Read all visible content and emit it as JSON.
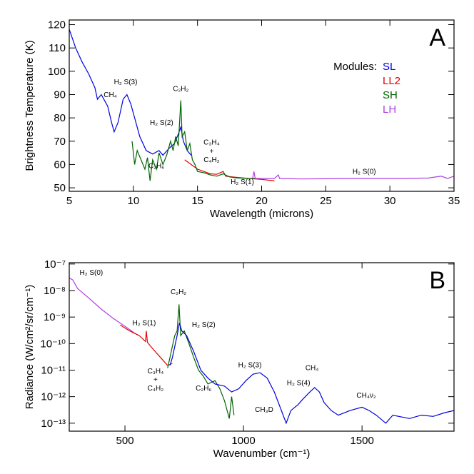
{
  "chart_data": [
    {
      "type": "line",
      "label": "A",
      "x_label": "Wavelength (microns)",
      "y_label": "Brightness Temperature (K)",
      "xlim": [
        5,
        35
      ],
      "ylim": [
        48.5,
        122
      ],
      "xticks": [
        5,
        10,
        15,
        20,
        25,
        30,
        35
      ],
      "yticks": [
        50,
        60,
        70,
        80,
        90,
        100,
        110,
        120
      ],
      "log_y": false,
      "legend_title": "Modules:",
      "series": [
        {
          "name": "SL",
          "color": "#0000e0",
          "x": [
            5,
            5.5,
            6,
            6.5,
            7,
            7.2,
            7.5,
            7.8,
            8,
            8.3,
            8.5,
            8.8,
            9.2,
            9.5,
            9.8,
            10.1,
            10.5,
            11,
            11.5,
            12,
            12.3,
            12.8,
            13.2,
            13.5,
            13.7,
            13.9,
            14.2,
            14.5
          ],
          "values": [
            118,
            110,
            104,
            99,
            93,
            88,
            90,
            87,
            85,
            78,
            74,
            78,
            88,
            90,
            86,
            80,
            72,
            66,
            64.5,
            66,
            64,
            67,
            69,
            73,
            76,
            70,
            66,
            64
          ]
        },
        {
          "name": "LL2",
          "color": "#e00000",
          "x": [
            14,
            14.5,
            15,
            15.5,
            16,
            16.5,
            17,
            17.2,
            18,
            19,
            20,
            21
          ],
          "values": [
            62,
            60,
            58,
            57,
            56,
            55.8,
            57,
            55,
            54.5,
            54,
            53.6,
            53
          ]
        },
        {
          "name": "SH",
          "color": "#006400",
          "x": [
            9.9,
            10.1,
            10.3,
            10.6,
            10.9,
            11.1,
            11.3,
            11.5,
            11.8,
            12,
            12.3,
            12.6,
            12.9,
            13.1,
            13.3,
            13.5,
            13.7,
            13.8,
            14,
            14.2,
            14.4,
            14.6,
            14.8,
            15,
            15.5,
            16,
            16.5,
            17,
            17.5,
            18,
            19,
            19.5
          ],
          "values": [
            70,
            60,
            66,
            62,
            58,
            63,
            53,
            62,
            58,
            65,
            60,
            64,
            70,
            66,
            72,
            68,
            87.5,
            72,
            74,
            66,
            69,
            62,
            60,
            57,
            56.5,
            55.5,
            55,
            56,
            54.7,
            54.3,
            54,
            54
          ]
        },
        {
          "name": "LH",
          "color": "#b040e0",
          "x": [
            19.3,
            19.4,
            19.5,
            21,
            21.3,
            21.4,
            23,
            25,
            27,
            29,
            31,
            33,
            34,
            34.5,
            35
          ],
          "values": [
            54,
            57,
            54,
            54,
            55.5,
            54,
            53.8,
            53.9,
            54,
            54,
            54,
            54.2,
            55,
            54,
            55
          ]
        }
      ],
      "annotations": [
        {
          "text": "CH₄",
          "x": 8.2,
          "y": 89
        },
        {
          "text": "H₂ S(3)",
          "x": 9.4,
          "y": 94.5
        },
        {
          "text": "C₂H₂",
          "x": 13.7,
          "y": 91.5
        },
        {
          "text": "H₂ S(2)",
          "x": 12.2,
          "y": 77
        },
        {
          "text": "C₃H₄",
          "x": 16.1,
          "y": 68.5
        },
        {
          "text": "+",
          "x": 16.1,
          "y": 64.8
        },
        {
          "text": "C₄H₂",
          "x": 16.1,
          "y": 61
        },
        {
          "text": "C₂H₆",
          "x": 11.8,
          "y": 58.5
        },
        {
          "text": "H₂ S(1)",
          "x": 18.5,
          "y": 51.5
        },
        {
          "text": "H₂ S(0)",
          "x": 28,
          "y": 56
        }
      ]
    },
    {
      "type": "line",
      "label": "B",
      "x_label": "Wavenumber (cm⁻¹)",
      "y_label": "Radiance (W/cm²/sr/cm⁻¹)",
      "xlim": [
        265,
        1888
      ],
      "ylim": [
        5e-14,
        1.12e-07
      ],
      "xticks": [
        500,
        1000,
        1500
      ],
      "yticks": [
        {
          "value": 1e-13,
          "label": "10⁻¹³"
        },
        {
          "value": 1e-12,
          "label": "10⁻¹²"
        },
        {
          "value": 1e-11,
          "label": "10⁻¹¹"
        },
        {
          "value": 1e-10,
          "label": "10⁻¹⁰"
        },
        {
          "value": 1e-09,
          "label": "10⁻⁹"
        },
        {
          "value": 1e-08,
          "label": "10⁻⁸"
        },
        {
          "value": 1e-07,
          "label": "10⁻⁷"
        }
      ],
      "log_y": true,
      "series": [
        {
          "color": "#b040e0",
          "x": [
            265,
            280,
            300,
            350,
            400,
            450,
            500,
            540,
            560
          ],
          "values": [
            3e-08,
            2.5e-08,
            1.2e-08,
            5e-09,
            2e-09,
            9e-10,
            4.5e-10,
            2.5e-10,
            2e-10
          ]
        },
        {
          "color": "#e00000",
          "x": [
            480,
            520,
            560,
            587,
            590,
            595,
            620,
            650,
            680,
            700
          ],
          "values": [
            5e-10,
            3e-10,
            2e-10,
            1.2e-10,
            3e-10,
            1.1e-10,
            6e-11,
            3e-11,
            1.5e-11,
            1.8e-11
          ]
        },
        {
          "color": "#006400",
          "x": [
            680,
            690,
            700,
            710,
            720,
            728,
            735,
            750,
            770,
            790,
            810,
            830,
            850,
            880,
            900,
            920,
            940,
            950,
            960
          ],
          "values": [
            1.2e-11,
            3e-11,
            8e-11,
            2e-10,
            3e-10,
            3e-09,
            2e-10,
            3e-10,
            1e-10,
            3e-11,
            1e-11,
            6e-12,
            3e-12,
            4e-12,
            2e-12,
            7e-13,
            1.5e-13,
            1e-12,
            2e-13
          ]
        },
        {
          "color": "#0000e0",
          "x": [
            690,
            700,
            720,
            730,
            740,
            760,
            790,
            820,
            850,
            880,
            920,
            950,
            980,
            1010,
            1040,
            1070,
            1100,
            1130,
            1160,
            1180,
            1200,
            1230,
            1250,
            1280,
            1300,
            1320,
            1340,
            1370,
            1400,
            1450,
            1500,
            1530,
            1560,
            1600,
            1630,
            1700,
            1750,
            1800,
            1850,
            1888
          ],
          "values": [
            1.5e-11,
            3e-11,
            2e-10,
            6e-10,
            3e-10,
            2e-10,
            5e-11,
            1e-11,
            5e-12,
            3e-12,
            2.5e-12,
            1.5e-12,
            2e-12,
            4e-12,
            7e-12,
            8e-12,
            5e-12,
            1.5e-12,
            3e-13,
            1e-13,
            3e-13,
            5e-13,
            8e-13,
            1.5e-12,
            2.2e-12,
            1.5e-12,
            6e-13,
            3e-13,
            2e-13,
            3e-13,
            4e-13,
            3e-13,
            2e-13,
            1e-13,
            2e-13,
            1.5e-13,
            2e-13,
            1.8e-13,
            2.5e-13,
            3e-13
          ]
        }
      ],
      "annotations": [
        {
          "text": "H₂ S(0)",
          "x": 358,
          "y": 3.9e-08
        },
        {
          "text": "H₂ S(1)",
          "x": 581,
          "y": 5e-10
        },
        {
          "text": "C₂H₂",
          "x": 726,
          "y": 7.4e-09
        },
        {
          "text": "H₂ S(2)",
          "x": 832,
          "y": 4.3e-10
        },
        {
          "text": "C₃H₄",
          "x": 629,
          "y": 7.6e-12
        },
        {
          "text": "+",
          "x": 629,
          "y": 3.6e-12
        },
        {
          "text": "C₄H₂",
          "x": 629,
          "y": 1.7e-12
        },
        {
          "text": "C₂H₆",
          "x": 832,
          "y": 1.7e-12
        },
        {
          "text": "H₂ S(3)",
          "x": 1027,
          "y": 1.3e-11
        },
        {
          "text": "CH₃D",
          "x": 1087,
          "y": 2.7e-13
        },
        {
          "text": "H₂ S(4)",
          "x": 1232,
          "y": 2.7e-12
        },
        {
          "text": "CH₄",
          "x": 1289,
          "y": 1e-11
        },
        {
          "text": "CH₄ν₂",
          "x": 1518,
          "y": 9.3e-13
        }
      ]
    }
  ]
}
